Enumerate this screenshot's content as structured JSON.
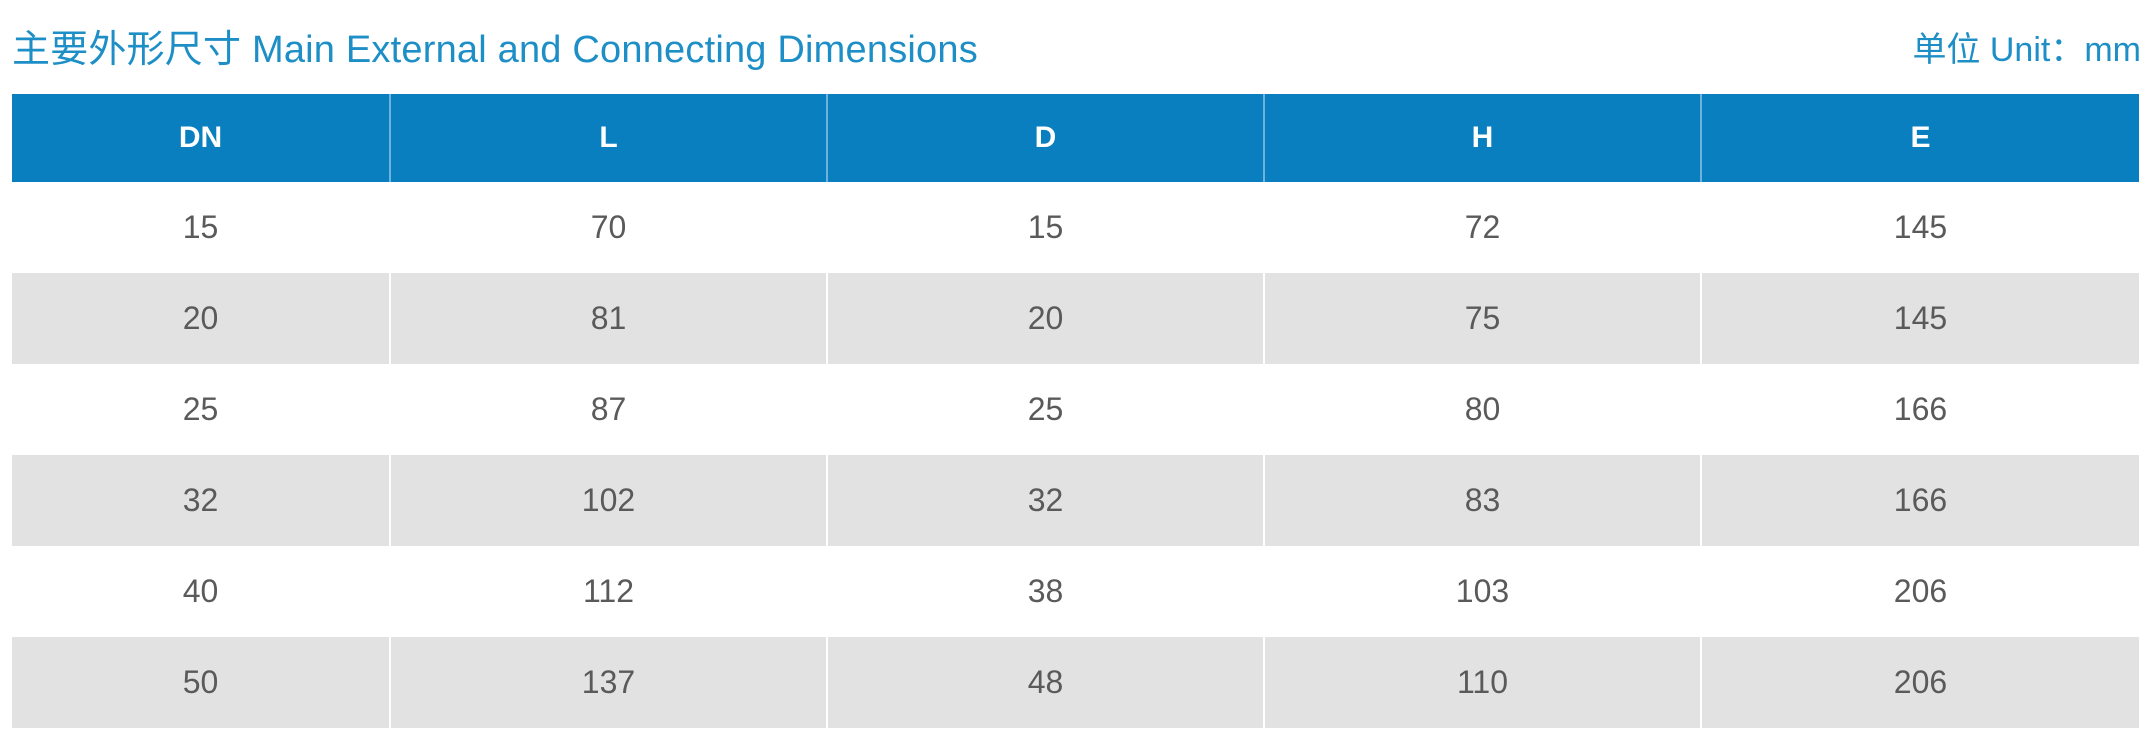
{
  "header": {
    "title": "主要外形尺寸 Main External and Connecting Dimensions",
    "unit": "单位 Unit：mm"
  },
  "table": {
    "columns": [
      "DN",
      "L",
      "D",
      "H",
      "E"
    ],
    "rows": [
      [
        "15",
        "70",
        "15",
        "72",
        "145"
      ],
      [
        "20",
        "81",
        "20",
        "75",
        "145"
      ],
      [
        "25",
        "87",
        "25",
        "80",
        "166"
      ],
      [
        "32",
        "102",
        "32",
        "83",
        "166"
      ],
      [
        "40",
        "112",
        "38",
        "103",
        "206"
      ],
      [
        "50",
        "137",
        "48",
        "110",
        "206"
      ]
    ]
  },
  "colors": {
    "accent": "#1d8fc6",
    "header_bg": "#0a7fc0",
    "stripe_bg": "#e2e2e2",
    "cell_text": "#5a5a5a"
  }
}
